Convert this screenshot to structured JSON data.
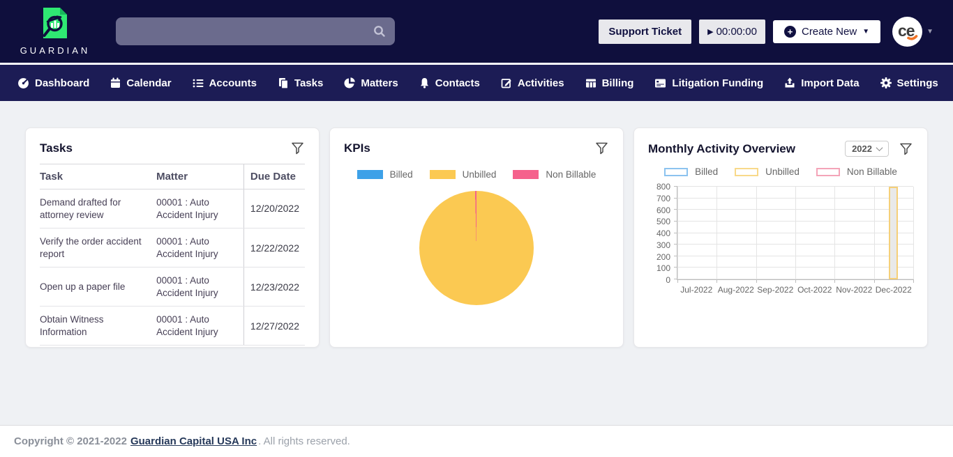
{
  "header": {
    "brand": "GUARDIAN",
    "search": {
      "placeholder": ""
    },
    "support_ticket_label": "Support Ticket",
    "timer_value": "00:00:00",
    "create_new_label": "Create New"
  },
  "nav": {
    "items": [
      {
        "icon": "dashboard-icon",
        "label": "Dashboard"
      },
      {
        "icon": "calendar-icon",
        "label": "Calendar"
      },
      {
        "icon": "accounts-icon",
        "label": "Accounts"
      },
      {
        "icon": "tasks-icon",
        "label": "Tasks"
      },
      {
        "icon": "matters-icon",
        "label": "Matters"
      },
      {
        "icon": "contacts-icon",
        "label": "Contacts"
      },
      {
        "icon": "activities-icon",
        "label": "Activities"
      },
      {
        "icon": "billing-icon",
        "label": "Billing"
      },
      {
        "icon": "litigation-funding-icon",
        "label": "Litigation Funding"
      },
      {
        "icon": "import-data-icon",
        "label": "Import Data"
      },
      {
        "icon": "settings-icon",
        "label": "Settings"
      }
    ]
  },
  "tasks_card": {
    "title": "Tasks",
    "columns": {
      "task": "Task",
      "matter": "Matter",
      "due": "Due Date"
    },
    "rows": [
      {
        "task": "Demand drafted for attorney review",
        "matter": "00001 : Auto Accident Injury",
        "due": "12/20/2022"
      },
      {
        "task": "Verify the order accident report",
        "matter": "00001 : Auto Accident Injury",
        "due": "12/22/2022"
      },
      {
        "task": "Open up a paper file",
        "matter": "00001 : Auto Accident Injury",
        "due": "12/23/2022"
      },
      {
        "task": "Obtain Witness Information",
        "matter": "00001 : Auto Accident Injury",
        "due": "12/27/2022"
      }
    ]
  },
  "kpis_card": {
    "title": "KPIs",
    "chart_data": {
      "type": "pie",
      "title": "KPIs",
      "legend_position": "top",
      "series": [
        {
          "name": "Billed",
          "value": 0,
          "color": "#3DA1E8"
        },
        {
          "name": "Unbilled",
          "value": 99.6,
          "color": "#FBC952"
        },
        {
          "name": "Non Billable",
          "value": 0.4,
          "color": "#F5618C"
        }
      ]
    }
  },
  "monthly_card": {
    "title": "Monthly Activity Overview",
    "year_selected": "2022",
    "chart_data": {
      "type": "bar",
      "title": "Monthly Activity Overview",
      "categories": [
        "Jul-2022",
        "Aug-2022",
        "Sep-2022",
        "Oct-2022",
        "Nov-2022",
        "Dec-2022"
      ],
      "series": [
        {
          "name": "Billed",
          "values": [
            0,
            0,
            0,
            0,
            0,
            0
          ]
        },
        {
          "name": "Unbilled",
          "values": [
            0,
            0,
            0,
            0,
            0,
            800
          ]
        },
        {
          "name": "Non Billable",
          "values": [
            0,
            0,
            0,
            0,
            0,
            0
          ]
        }
      ],
      "ylim": [
        0,
        800
      ],
      "ytick_step": 100,
      "grid": true,
      "legend_position": "top"
    }
  },
  "footer": {
    "copyright_prefix": "Copyright © 2021-2022",
    "company_link": "Guardian Capital USA Inc",
    "suffix": ". All rights reserved."
  },
  "colors": {
    "billed_blue": "#3DA1E8",
    "unbilled_yellow": "#FBC952",
    "non_billable_pink": "#F5618C",
    "bar_fill": "#E9E9E9",
    "bar_border": "#F5CF78",
    "legend_outline_billed": "#8CC3EF",
    "legend_outline_unbilled": "#F8D98A",
    "legend_outline_non_billable": "#F4A4B8"
  }
}
